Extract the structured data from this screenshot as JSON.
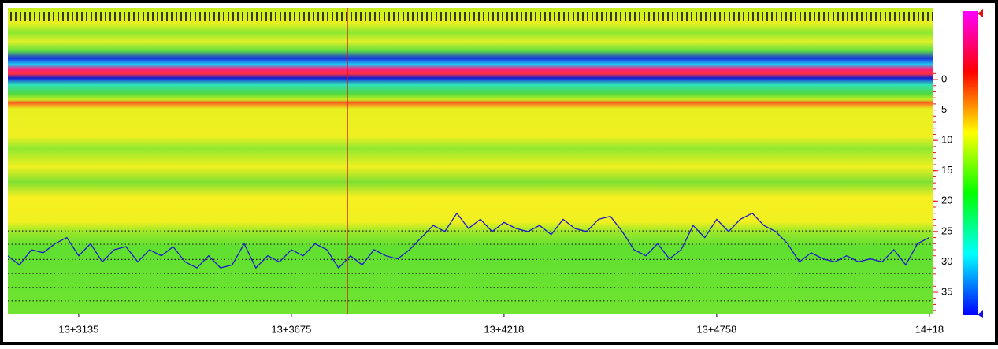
{
  "chart_data": {
    "type": "line",
    "xlim": [
      -0.333,
      4.019
    ],
    "xticks": [
      {
        "value": 0,
        "label": "13+3135"
      },
      {
        "value": 1,
        "label": "13+3675"
      },
      {
        "value": 2,
        "label": "13+4218"
      },
      {
        "value": 3,
        "label": "13+4758"
      },
      {
        "value": 4,
        "label": "14+18"
      }
    ],
    "ylim": [
      -11.8,
      38.5
    ],
    "y_inverted": true,
    "yticks": [
      0,
      5,
      10,
      15,
      20,
      25,
      30,
      35
    ],
    "hlines": [
      24.9,
      27.1,
      29.6,
      31.9,
      34.2,
      36.4
    ],
    "cursor_x": 1.263,
    "cursor_color": "#e01010",
    "series": [
      {
        "color": "#1a1acc",
        "x": [
          -0.333,
          -0.278,
          -0.222,
          -0.167,
          -0.111,
          -0.056,
          0,
          0.056,
          0.111,
          0.167,
          0.222,
          0.278,
          0.333,
          0.389,
          0.444,
          0.5,
          0.556,
          0.611,
          0.667,
          0.722,
          0.778,
          0.833,
          0.889,
          0.944,
          1,
          1.056,
          1.111,
          1.167,
          1.222,
          1.278,
          1.333,
          1.389,
          1.444,
          1.5,
          1.556,
          1.611,
          1.667,
          1.722,
          1.778,
          1.833,
          1.889,
          1.944,
          2,
          2.056,
          2.111,
          2.167,
          2.222,
          2.278,
          2.333,
          2.389,
          2.444,
          2.5,
          2.556,
          2.611,
          2.667,
          2.722,
          2.778,
          2.833,
          2.889,
          2.944,
          3,
          3.056,
          3.111,
          3.167,
          3.222,
          3.278,
          3.333,
          3.389,
          3.444,
          3.5,
          3.556,
          3.611,
          3.667,
          3.722,
          3.778,
          3.833,
          3.889,
          3.944,
          4
        ],
        "values": [
          29,
          30.5,
          28,
          28.5,
          27,
          26,
          29,
          27,
          30,
          28,
          27.5,
          30,
          28,
          29,
          27.5,
          30,
          31,
          29,
          31,
          30.5,
          27,
          31,
          29,
          30,
          28,
          29,
          27,
          28,
          31,
          29,
          30.5,
          28,
          29,
          29.5,
          28,
          26,
          24,
          25,
          22,
          24.5,
          23,
          25,
          23.5,
          24.5,
          25,
          24,
          25.5,
          23,
          24.5,
          25,
          23,
          22.5,
          25,
          28,
          29,
          27,
          29.5,
          28,
          24,
          26,
          23,
          25,
          23,
          22,
          24,
          25,
          27,
          30,
          28.5,
          29.5,
          30,
          29,
          30,
          29.5,
          30,
          28,
          30.5,
          27,
          26
        ]
      }
    ]
  }
}
